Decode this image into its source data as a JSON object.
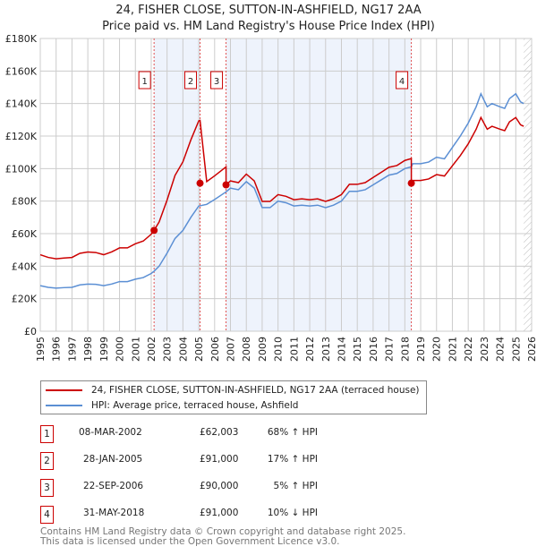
{
  "header": {
    "title": "24, FISHER CLOSE, SUTTON-IN-ASHFIELD, NG17 2AA",
    "subtitle": "Price paid vs. HM Land Registry's House Price Index (HPI)"
  },
  "chart_data": {
    "type": "line",
    "title": "24, FISHER CLOSE, SUTTON-IN-ASHFIELD, NG17 2AA",
    "subtitle": "Price paid vs. HM Land Registry's House Price Index (HPI)",
    "xlim": [
      1995,
      2026
    ],
    "ylim": [
      0,
      180000
    ],
    "yticks": [
      {
        "v": 0,
        "label": "£0"
      },
      {
        "v": 20000,
        "label": "£20K"
      },
      {
        "v": 40000,
        "label": "£40K"
      },
      {
        "v": 60000,
        "label": "£60K"
      },
      {
        "v": 80000,
        "label": "£80K"
      },
      {
        "v": 100000,
        "label": "£100K"
      },
      {
        "v": 120000,
        "label": "£120K"
      },
      {
        "v": 140000,
        "label": "£140K"
      },
      {
        "v": 160000,
        "label": "£160K"
      },
      {
        "v": 180000,
        "label": "£180K"
      }
    ],
    "xticks": [
      "1995",
      "1996",
      "1997",
      "1998",
      "1999",
      "2000",
      "2001",
      "2002",
      "2003",
      "2004",
      "2005",
      "2006",
      "2007",
      "2008",
      "2009",
      "2010",
      "2011",
      "2012",
      "2013",
      "2014",
      "2015",
      "2016",
      "2017",
      "2018",
      "2019",
      "2020",
      "2021",
      "2022",
      "2023",
      "2024",
      "2025",
      "2026"
    ],
    "grid": true,
    "colors": {
      "property": "#cc0000",
      "hpi": "#5b8fd4",
      "shade": "#eef3fc"
    },
    "hpi_series": {
      "name": "HPI: Average price, terraced house, Ashfield",
      "x": [
        1995,
        1995.5,
        1996,
        1996.5,
        1997,
        1997.5,
        1998,
        1998.5,
        1999,
        1999.5,
        2000,
        2000.5,
        2001,
        2001.5,
        2002,
        2002.18,
        2002.5,
        2003,
        2003.5,
        2004,
        2004.5,
        2005,
        2005.5,
        2006,
        2006.72,
        2007,
        2007.5,
        2008,
        2008.5,
        2009,
        2009.5,
        2010,
        2010.5,
        2011,
        2011.5,
        2012,
        2012.5,
        2013,
        2013.5,
        2014,
        2014.5,
        2015,
        2015.5,
        2016,
        2016.5,
        2017,
        2017.5,
        2018,
        2018.41,
        2018.5,
        2019,
        2019.5,
        2020,
        2020.5,
        2021,
        2021.5,
        2022,
        2022.5,
        2022.8,
        2023.2,
        2023.5,
        2024,
        2024.3,
        2024.6,
        2025,
        2025.3,
        2025.5
      ],
      "y": [
        28000,
        27000,
        26500,
        26800,
        27000,
        28500,
        29000,
        28800,
        28000,
        29000,
        30500,
        30500,
        32000,
        33000,
        35500,
        36900,
        40000,
        48000,
        57000,
        62000,
        70000,
        77000,
        78000,
        81000,
        85700,
        88000,
        87000,
        92000,
        88000,
        76000,
        76000,
        80000,
        79000,
        77000,
        77500,
        77000,
        77500,
        76000,
        77500,
        80000,
        86000,
        86000,
        87000,
        90000,
        93000,
        96000,
        97000,
        100000,
        101100,
        103000,
        103000,
        104000,
        107000,
        106000,
        113000,
        120000,
        128000,
        138000,
        146000,
        138000,
        140000,
        138000,
        137000,
        143000,
        146000,
        141000,
        140000
      ]
    },
    "property_series": {
      "name": "24, FISHER CLOSE, SUTTON-IN-ASHFIELD, NG17 2AA (terraced house)"
    },
    "sales": [
      {
        "n": "1",
        "x": 2002.18,
        "date": "08-MAR-2002",
        "price": 62003,
        "price_label": "£62,003",
        "hpi": "68% ↑ HPI"
      },
      {
        "n": "2",
        "x": 2005.08,
        "date": "28-JAN-2005",
        "price": 91000,
        "price_label": "£91,000",
        "hpi": "17% ↑ HPI"
      },
      {
        "n": "3",
        "x": 2006.72,
        "date": "22-SEP-2006",
        "price": 90000,
        "price_label": "£90,000",
        "hpi": "5% ↑ HPI"
      },
      {
        "n": "4",
        "x": 2018.41,
        "date": "31-MAY-2018",
        "price": 91000,
        "price_label": "£91,000",
        "hpi": "10% ↓ HPI"
      }
    ]
  },
  "legend": {
    "property": "24, FISHER CLOSE, SUTTON-IN-ASHFIELD, NG17 2AA (terraced house)",
    "hpi": "HPI: Average price, terraced house, Ashfield"
  },
  "footer": {
    "line1": "Contains HM Land Registry data © Crown copyright and database right 2025.",
    "line2": "This data is licensed under the Open Government Licence v3.0."
  }
}
